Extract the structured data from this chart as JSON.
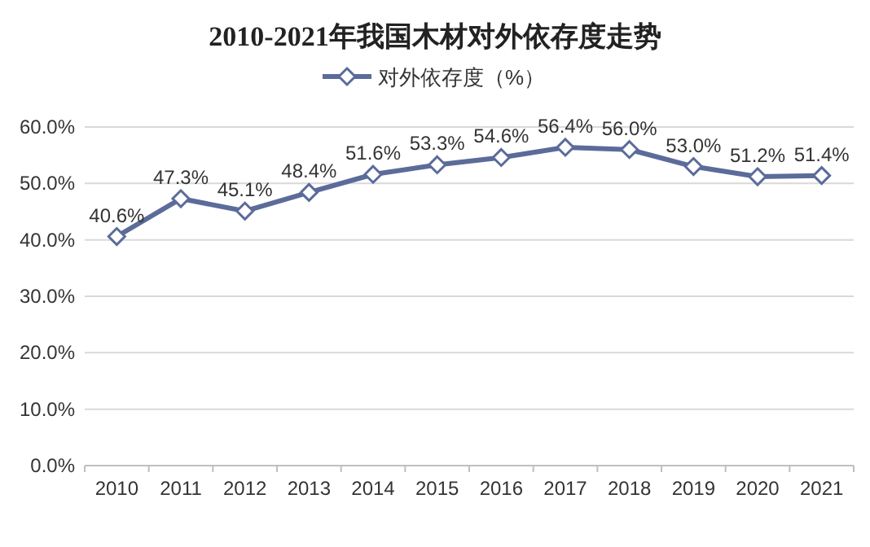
{
  "chart_data": {
    "type": "line",
    "title": "2010-2021年我国木材对外依存度走势",
    "categories": [
      "2010",
      "2011",
      "2012",
      "2013",
      "2014",
      "2015",
      "2016",
      "2017",
      "2018",
      "2019",
      "2020",
      "2021"
    ],
    "series": [
      {
        "name": "对外依存度（%）",
        "color": "#5b6b9a",
        "values": [
          40.6,
          47.3,
          45.1,
          48.4,
          51.6,
          53.3,
          54.6,
          56.4,
          56.0,
          53.0,
          51.2,
          51.4
        ],
        "value_labels": [
          "40.6%",
          "47.3%",
          "45.1%",
          "48.4%",
          "51.6%",
          "53.3%",
          "54.6%",
          "56.4%",
          "56.0%",
          "53.0%",
          "51.2%",
          "51.4%"
        ]
      }
    ],
    "ylim": [
      0,
      60
    ],
    "yticks": [
      {
        "value": 0,
        "label": "0.0%"
      },
      {
        "value": 10,
        "label": "10.0%"
      },
      {
        "value": 20,
        "label": "20.0%"
      },
      {
        "value": 30,
        "label": "30.0%"
      },
      {
        "value": 40,
        "label": "40.0%"
      },
      {
        "value": 50,
        "label": "50.0%"
      },
      {
        "value": 60,
        "label": "60.0%"
      }
    ],
    "grid": "y",
    "legend": "top",
    "marker": "diamond"
  }
}
